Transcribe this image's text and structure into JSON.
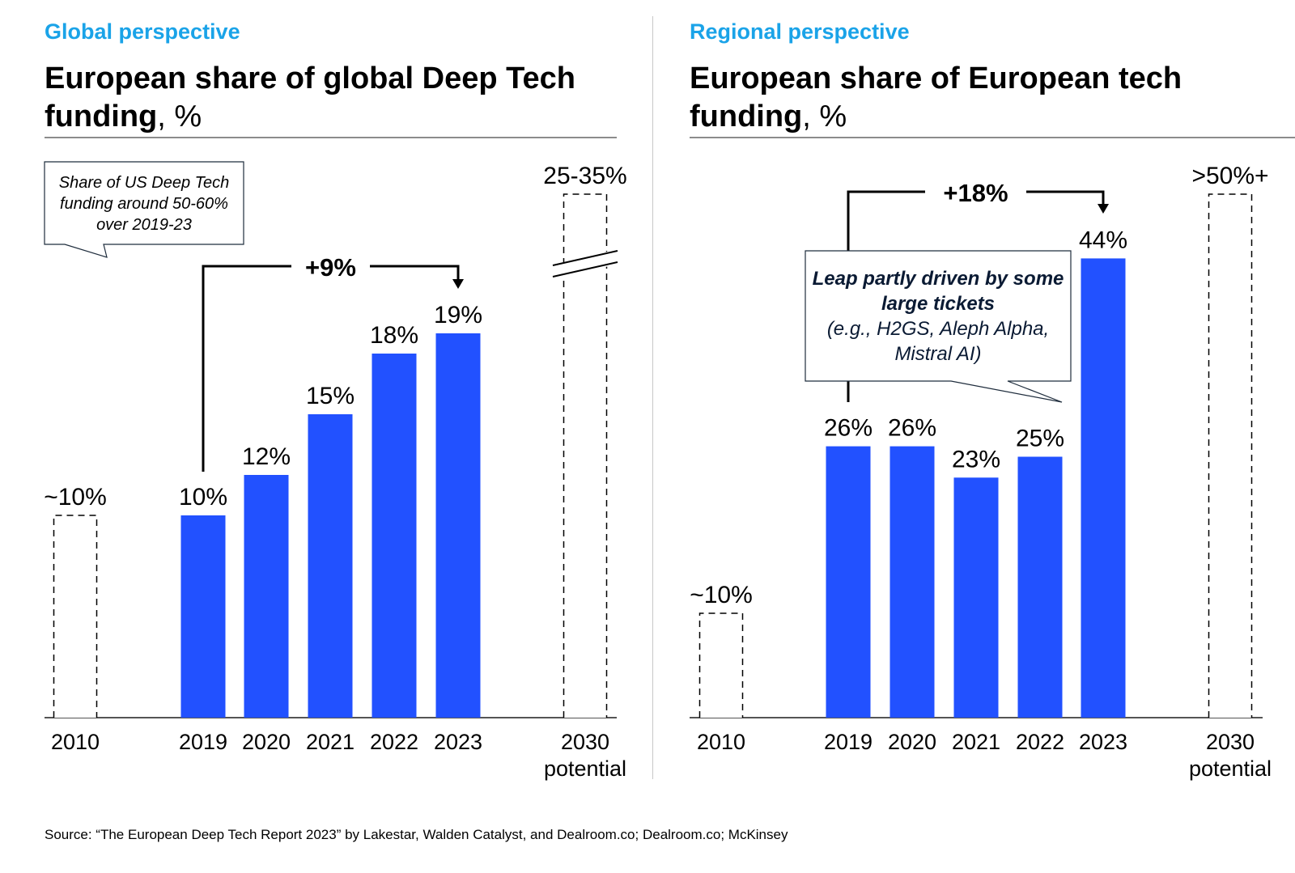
{
  "colors": {
    "bar": "#2251ff",
    "subtitle": "#1aa3e8",
    "text": "#000000"
  },
  "left": {
    "subtitle": "Global perspective",
    "title": "European share of global Deep Tech funding",
    "unit": ", %",
    "callout": "Share of US Deep Tech funding around 50-60% over 2019-23",
    "bracket_label": "+9%"
  },
  "right": {
    "subtitle": "Regional perspective",
    "title": "European share of European tech funding",
    "unit": ", %",
    "callout_bold": "Leap partly driven by some large tickets",
    "callout_italic": "(e.g., H2GS, Aleph Alpha, Mistral AI)",
    "bracket_label": "+18%"
  },
  "source": "Source: “The European Deep Tech Report 2023” by Lakestar, Walden Catalyst, and Dealroom.co; Dealroom.co; McKinsey",
  "chart_data": [
    {
      "type": "bar",
      "title": "European share of global Deep Tech funding, %",
      "categories": [
        "2010",
        "2019",
        "2020",
        "2021",
        "2022",
        "2023",
        "2030 potential"
      ],
      "values": [
        10,
        10,
        12,
        15,
        18,
        19,
        30
      ],
      "labels": [
        "~10%",
        "10%",
        "12%",
        "15%",
        "18%",
        "19%",
        "25-35%"
      ],
      "style": [
        "dashed",
        "solid",
        "solid",
        "solid",
        "solid",
        "solid",
        "dashed-broken"
      ],
      "annotation": {
        "from": "2019",
        "to": "2023",
        "label": "+9%"
      }
    },
    {
      "type": "bar",
      "title": "European share of European tech funding, %",
      "categories": [
        "2010",
        "2019",
        "2020",
        "2021",
        "2022",
        "2023",
        "2030 potential"
      ],
      "values": [
        10,
        26,
        26,
        23,
        25,
        44,
        50
      ],
      "labels": [
        "~10%",
        "26%",
        "26%",
        "23%",
        "25%",
        "44%",
        ">50%+"
      ],
      "style": [
        "dashed",
        "solid",
        "solid",
        "solid",
        "solid",
        "solid",
        "dashed"
      ],
      "annotation": {
        "from": "2019",
        "to": "2023",
        "label": "+18%"
      }
    }
  ]
}
